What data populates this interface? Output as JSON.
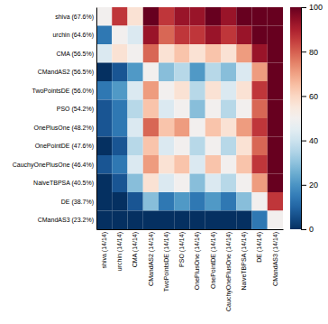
{
  "chart_data": {
    "type": "heatmap",
    "rows": [
      "shiva (67.6%)",
      "urchin (64.6%)",
      "CMA (56.5%)",
      "CMandAS2 (56.5%)",
      "TwoPointsDE (56.0%)",
      "PSO (54.2%)",
      "OnePlusOne (48.2%)",
      "OnePointDE (47.6%)",
      "CauchyOnePlusOne (46.4%)",
      "NaiveTBPSA (40.5%)",
      "DE (38.7%)",
      "CMandAS3 (23.2%)"
    ],
    "columns": [
      "shiva (14/14)",
      "urchin (14/14)",
      "CMA (14/14)",
      "CMandAS2 (14/14)",
      "TwoPointsDE (14/14)",
      "PSO (14/14)",
      "OnePlusOne (14/14)",
      "OnePointDE (14/14)",
      "CauchyOnePlusOne (14/14)",
      "NaiveTBPSA (14/14)",
      "DE (14/14)",
      "CMandAS3 (14/14)"
    ],
    "values": [
      [
        50,
        86,
        57,
        100,
        86,
        93,
        93,
        100,
        93,
        100,
        100,
        100
      ],
      [
        14,
        50,
        43,
        93,
        79,
        86,
        86,
        93,
        86,
        93,
        100,
        100
      ],
      [
        43,
        57,
        50,
        79,
        57,
        64,
        57,
        64,
        57,
        71,
        93,
        100
      ],
      [
        0,
        7,
        21,
        50,
        29,
        36,
        21,
        36,
        29,
        43,
        71,
        100
      ],
      [
        14,
        21,
        43,
        71,
        50,
        57,
        36,
        57,
        43,
        57,
        86,
        100
      ],
      [
        7,
        14,
        36,
        64,
        43,
        50,
        29,
        50,
        36,
        50,
        79,
        100
      ],
      [
        7,
        14,
        43,
        79,
        64,
        71,
        50,
        64,
        57,
        71,
        86,
        100
      ],
      [
        0,
        7,
        36,
        64,
        43,
        50,
        36,
        50,
        36,
        57,
        79,
        100
      ],
      [
        7,
        14,
        43,
        71,
        57,
        64,
        43,
        64,
        50,
        64,
        86,
        100
      ],
      [
        0,
        7,
        29,
        57,
        43,
        50,
        29,
        43,
        36,
        50,
        71,
        100
      ],
      [
        0,
        0,
        7,
        29,
        14,
        21,
        14,
        21,
        14,
        29,
        50,
        86
      ],
      [
        0,
        0,
        0,
        0,
        0,
        0,
        0,
        0,
        0,
        0,
        14,
        50
      ]
    ],
    "color": "RdBu_r",
    "colorbar": {
      "lim": [
        0,
        100
      ],
      "ticks": [
        0,
        20,
        40,
        60,
        80,
        100
      ]
    }
  }
}
